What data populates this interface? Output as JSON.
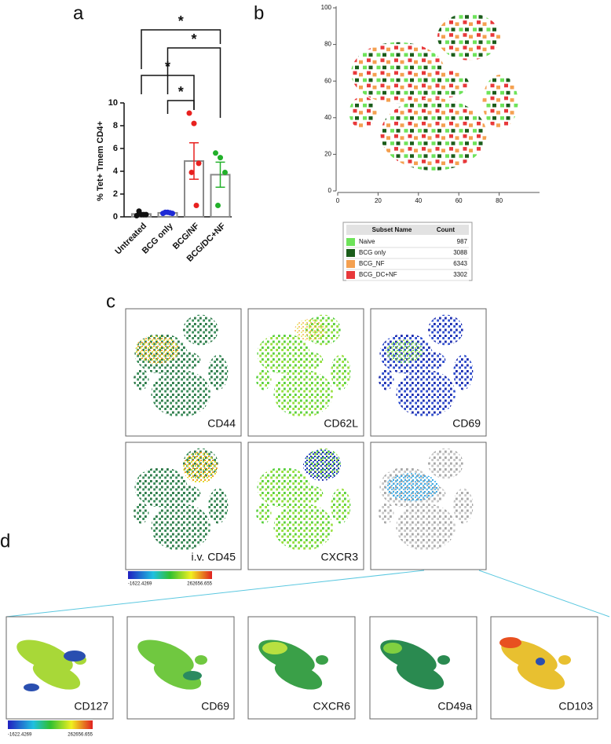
{
  "panel_labels": [
    "a",
    "b",
    "c",
    "d"
  ],
  "chart_data": [
    {
      "type": "bar",
      "ylabel": "% Tet+ Tmem CD4+",
      "categories": [
        "Untreated",
        "BCG only",
        "BCG/NF",
        "BCG/DC+NF"
      ],
      "values": [
        0.25,
        0.35,
        4.9,
        3.7
      ],
      "errors": [
        0.08,
        0.03,
        1.6,
        1.1
      ],
      "points": [
        [
          0.1,
          0.2,
          0.2,
          0.5,
          0.2
        ],
        [
          0.3,
          0.4,
          0.3,
          0.4,
          0.35
        ],
        [
          9.1,
          8.2,
          4.7,
          3.9,
          1.0
        ],
        [
          5.6,
          5.2,
          3.9,
          1.0
        ]
      ],
      "point_colors": [
        "#111111",
        "#1f2bd6",
        "#e8211f",
        "#22b02a"
      ],
      "bar_color": "#ffffff",
      "ylim": [
        0,
        10
      ],
      "yticks": [
        0,
        2,
        4,
        6,
        8,
        10
      ],
      "annotations": [
        {
          "text": "*",
          "from": "Untreated",
          "to": "BCG/DC+NF"
        },
        {
          "text": "*",
          "from": "BCG only",
          "to": "BCG/DC+NF"
        },
        {
          "text": "*",
          "from": "Untreated",
          "to": "BCG/NF"
        },
        {
          "text": "*",
          "from": "BCG only",
          "to": "BCG/NF"
        }
      ]
    },
    {
      "type": "scatter",
      "xlim": [
        0,
        100
      ],
      "ylim": [
        0,
        100
      ],
      "xticks": [
        0,
        20,
        40,
        60,
        80
      ],
      "yticks": [
        0,
        20,
        40,
        60,
        80,
        100
      ],
      "table_header": [
        "Subset Name",
        "Count"
      ],
      "series": [
        {
          "name": "Naive",
          "color": "#6ee35a",
          "count": 987
        },
        {
          "name": "BCG only",
          "color": "#1a5c1a",
          "count": 3088
        },
        {
          "name": "BCG_NF",
          "color": "#f4a050",
          "count": 6343
        },
        {
          "name": "BCG_DC+NF",
          "color": "#e8383a",
          "count": 3302
        }
      ]
    }
  ],
  "panel_c_markers": [
    "CD44",
    "CD62L",
    "CD69",
    "i.v. CD45",
    "CXCR3"
  ],
  "panel_d_markers": [
    "CD127",
    "CD69",
    "CXCR6",
    "CD49a",
    "CD103"
  ],
  "colorbar": {
    "min": "-1622.4269",
    "max": "262656.655"
  }
}
